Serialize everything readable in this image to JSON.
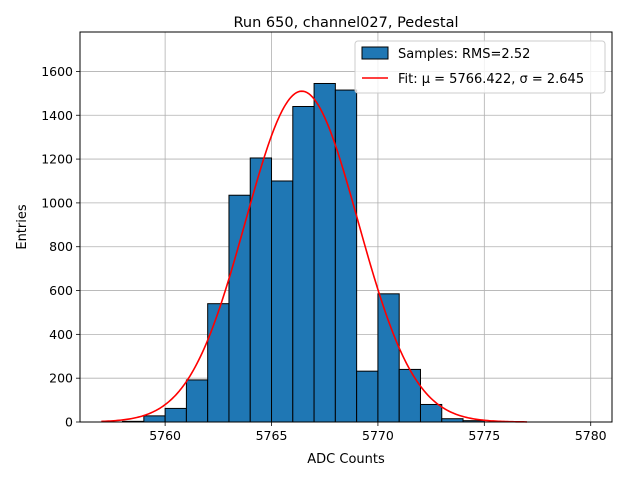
{
  "chart_data": {
    "type": "bar",
    "title": "Run 650, channel027, Pedestal",
    "xlabel": "ADC Counts",
    "ylabel": "Entries",
    "xlim": [
      5756,
      5781
    ],
    "ylim": [
      0,
      1780
    ],
    "xticks": [
      5760,
      5765,
      5770,
      5775,
      5780
    ],
    "yticks": [
      0,
      200,
      400,
      600,
      800,
      1000,
      1200,
      1400,
      1600
    ],
    "grid": true,
    "legend_position": "top-right",
    "bin_width": 1,
    "bins": [
      {
        "left": 5758,
        "count": 3
      },
      {
        "left": 5759,
        "count": 28
      },
      {
        "left": 5760,
        "count": 62
      },
      {
        "left": 5761,
        "count": 192
      },
      {
        "left": 5762,
        "count": 540
      },
      {
        "left": 5763,
        "count": 1035
      },
      {
        "left": 5764,
        "count": 1205
      },
      {
        "left": 5765,
        "count": 1100
      },
      {
        "left": 5766,
        "count": 1440
      },
      {
        "left": 5767,
        "count": 1545
      },
      {
        "left": 5768,
        "count": 1515
      },
      {
        "left": 5769,
        "count": 232
      },
      {
        "left": 5770,
        "count": 585
      },
      {
        "left": 5771,
        "count": 240
      },
      {
        "left": 5772,
        "count": 80
      },
      {
        "left": 5773,
        "count": 15
      },
      {
        "left": 5774,
        "count": 6
      }
    ],
    "fit": {
      "type": "gaussian",
      "mu": 5766.422,
      "sigma": 2.645,
      "amplitude": 1510,
      "x_range": [
        5757,
        5777
      ]
    },
    "series": [
      {
        "name": "Samples: RMS=2.52",
        "kind": "histogram",
        "color": "#1f77b4"
      },
      {
        "name": "Fit: μ = 5766.422, σ = 2.645",
        "kind": "line",
        "color": "#ff0000"
      }
    ]
  }
}
